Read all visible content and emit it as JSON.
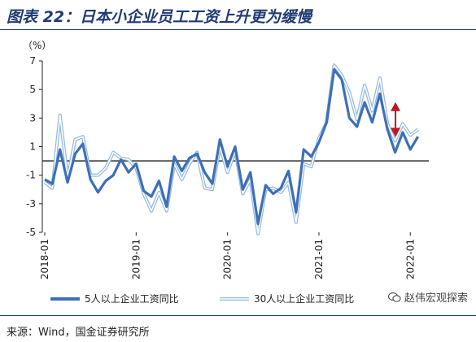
{
  "title": "图表 22：日本小企业员工工资上升更为缓慢",
  "source": "来源：Wind，国金证券研究所",
  "watermark": "赵伟宏观探索",
  "colors": {
    "series1": "#3e6fb8",
    "series2": "#8fb8e0",
    "arrow": "#c0161e",
    "title": "#1f3b73"
  },
  "chart_data": {
    "type": "line",
    "ylabel": "（%）",
    "ylim": [
      -5,
      7
    ],
    "yticks": [
      -5,
      -3,
      -1,
      1,
      3,
      5,
      7
    ],
    "x_tick_labels": [
      "2018-01",
      "2019-01",
      "2020-01",
      "2021-01",
      "2022-01"
    ],
    "x_start": "2018-01",
    "x_step": "month",
    "zero_line": true,
    "series": [
      {
        "name": "5人以上企业工资同比",
        "values": [
          -1.3,
          -1.6,
          0.8,
          -1.5,
          0.5,
          1.2,
          -1.3,
          -2.2,
          -1.4,
          -1.0,
          0.1,
          -0.8,
          -0.2,
          -2.1,
          -2.5,
          -1.4,
          -3.2,
          0.3,
          -0.7,
          0.2,
          0.5,
          -0.8,
          -1.6,
          1.5,
          -0.4,
          1.0,
          -2.0,
          -0.8,
          -4.4,
          -1.7,
          -2.3,
          -1.9,
          -0.7,
          -3.6,
          0.8,
          0.3,
          1.3,
          2.7,
          6.4,
          5.7,
          3.0,
          2.4,
          4.1,
          2.7,
          4.7,
          2.2,
          0.6,
          2.0,
          0.8,
          1.7
        ]
      },
      {
        "name": "30人以上企业工资同比",
        "values": [
          -1.5,
          -1.9,
          3.2,
          -1.2,
          1.5,
          1.7,
          -1.0,
          -1.0,
          -0.5,
          0.6,
          0.2,
          0.1,
          -0.5,
          -2.3,
          -3.5,
          -2.2,
          -3.5,
          -0.2,
          -1.3,
          -0.2,
          0.6,
          -1.9,
          -2.0,
          1.0,
          -0.8,
          0.7,
          -2.3,
          -1.3,
          -5.1,
          -2.0,
          -1.9,
          -2.2,
          -1.5,
          -4.3,
          -0.2,
          -0.4,
          1.6,
          2.7,
          6.7,
          6.0,
          4.8,
          2.9,
          5.3,
          3.5,
          5.8,
          2.6,
          1.4,
          2.6,
          1.8,
          2.2
        ]
      }
    ],
    "annotation_arrow": {
      "x": "2021-11",
      "from": 1.8,
      "to": 4.0
    }
  }
}
